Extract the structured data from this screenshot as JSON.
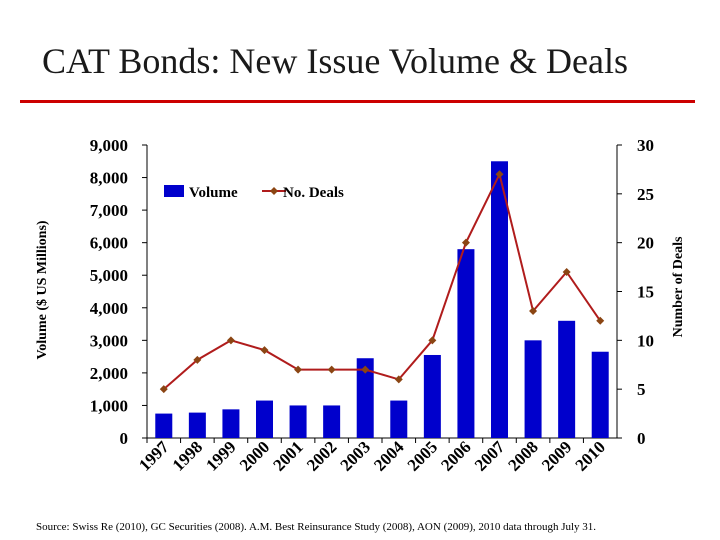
{
  "slide": {
    "title": "CAT Bonds: New Issue Volume & Deals",
    "source": "Source:  Swiss Re  (2010), GC Securities (2008). A.M. Best Reinsurance Study (2008), AON (2009), 2010 data through July 31."
  },
  "colors": {
    "bar": "#0000cc",
    "line": "#b01c1c",
    "marker": "#8b4513",
    "rule": "#cc0000"
  },
  "chart_data": {
    "type": "bar",
    "title": "CAT Bonds: New Issue Volume & Deals",
    "categories": [
      "1997",
      "1998",
      "1999",
      "2000",
      "2001",
      "2002",
      "2003",
      "2004",
      "2005",
      "2006",
      "2007",
      "2008",
      "2009",
      "2010"
    ],
    "series": [
      {
        "name": "Volume",
        "type": "bar",
        "axis": "left",
        "values": [
          750,
          780,
          880,
          1150,
          1000,
          1000,
          2450,
          1150,
          2550,
          5800,
          8500,
          3000,
          3600,
          2650
        ]
      },
      {
        "name": "No. Deals",
        "type": "line",
        "axis": "right",
        "values": [
          5,
          8,
          10,
          9,
          7,
          7,
          7,
          6,
          10,
          20,
          27,
          13,
          17,
          12
        ]
      }
    ],
    "ylabel": "Volume ($ US Millions)",
    "y2label": "Number of Deals",
    "ylim": [
      0,
      9000
    ],
    "y2lim": [
      0,
      30
    ],
    "yticks": [
      "0",
      "1,000",
      "2,000",
      "3,000",
      "4,000",
      "5,000",
      "6,000",
      "7,000",
      "8,000",
      "9,000"
    ],
    "y2ticks": [
      "0",
      "5",
      "10",
      "15",
      "20",
      "25",
      "30"
    ],
    "legend": [
      "Volume",
      "No. Deals"
    ],
    "legend_position": "top-left",
    "grid": false
  }
}
